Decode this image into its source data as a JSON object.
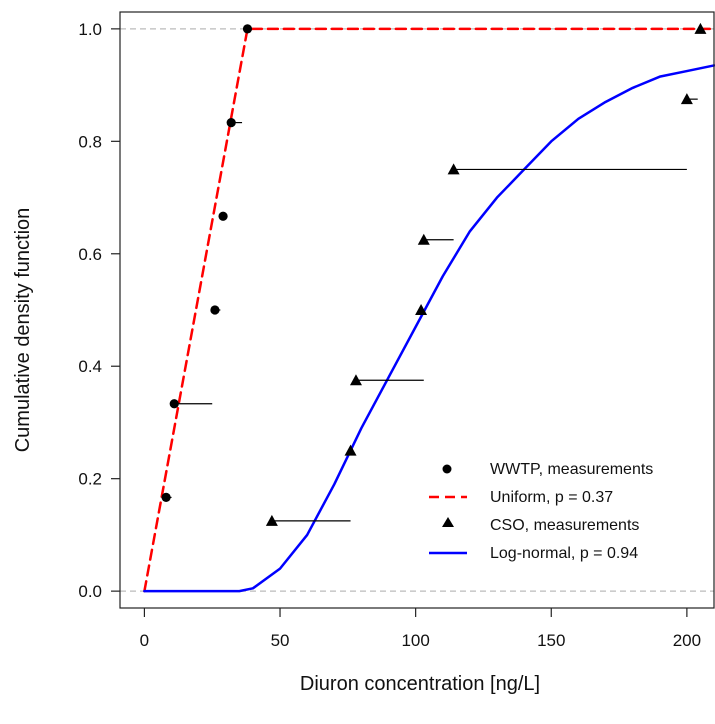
{
  "chart_data": {
    "type": "scatter",
    "title": "",
    "xlabel": "Diuron concentration [ng/L]",
    "ylabel": "Cumulative density function",
    "xlim": [
      -9,
      210
    ],
    "ylim": [
      -0.03,
      1.03
    ],
    "x_ticks": [
      0,
      50,
      100,
      150,
      200
    ],
    "y_ticks": [
      0.0,
      0.2,
      0.4,
      0.6,
      0.8,
      1.0
    ],
    "x_tick_labels": [
      "0",
      "50",
      "100",
      "150",
      "200"
    ],
    "y_tick_labels": [
      "0.0",
      "0.2",
      "0.4",
      "0.6",
      "0.8",
      "1.0"
    ],
    "reference_lines": [
      0,
      1
    ],
    "legend_position": "bottom-right",
    "colors": {
      "wwtp": "#000000",
      "cso": "#000000",
      "uniform": "#ff0000",
      "lognormal": "#0000ff",
      "reference": "#bbbbbb"
    },
    "series": [
      {
        "name": "WWTP, measurements",
        "kind": "points",
        "marker": "circle",
        "points": [
          {
            "x": 8,
            "y": 0.1667,
            "x_hi": 10
          },
          {
            "x": 11,
            "y": 0.3333,
            "x_hi": 25
          },
          {
            "x": 26,
            "y": 0.5,
            "x_hi": 28
          },
          {
            "x": 29,
            "y": 0.6667,
            "x_hi": 30
          },
          {
            "x": 32,
            "y": 0.8333,
            "x_hi": 36
          },
          {
            "x": 38,
            "y": 1.0,
            "x_hi": 38
          }
        ]
      },
      {
        "name": "Uniform, p = 0.37",
        "kind": "line",
        "dash": "dashed",
        "x": [
          0,
          38,
          210
        ],
        "y": [
          0,
          1,
          1
        ]
      },
      {
        "name": "CSO, measurements",
        "kind": "points",
        "marker": "triangle",
        "points": [
          {
            "x": 47,
            "y": 0.125,
            "x_hi": 76
          },
          {
            "x": 76,
            "y": 0.25,
            "x_hi": 76
          },
          {
            "x": 78,
            "y": 0.375,
            "x_hi": 103
          },
          {
            "x": 102,
            "y": 0.5,
            "x_hi": 102
          },
          {
            "x": 103,
            "y": 0.625,
            "x_hi": 114
          },
          {
            "x": 114,
            "y": 0.75,
            "x_hi": 200
          },
          {
            "x": 200,
            "y": 0.875,
            "x_hi": 204
          },
          {
            "x": 205,
            "y": 1.0,
            "x_hi": 205
          }
        ]
      },
      {
        "name": "Log-normal, p = 0.94",
        "kind": "line",
        "dash": "solid",
        "x": [
          0,
          25,
          30,
          35,
          40,
          50,
          60,
          70,
          80,
          90,
          100,
          110,
          120,
          130,
          140,
          150,
          160,
          170,
          180,
          190,
          200,
          210
        ],
        "y": [
          0,
          0.0,
          0.0,
          0.0,
          0.005,
          0.04,
          0.1,
          0.19,
          0.29,
          0.38,
          0.47,
          0.56,
          0.64,
          0.7,
          0.75,
          0.8,
          0.84,
          0.87,
          0.895,
          0.915,
          0.925,
          0.935
        ]
      }
    ]
  }
}
